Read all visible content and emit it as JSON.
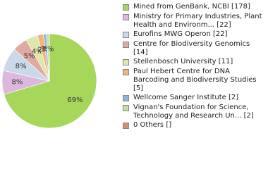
{
  "chart_data": {
    "type": "pie",
    "categories": [
      "Mined from GenBank, NCBI [178]",
      "Ministry for Primary Industries, Plant Health and Environm... [22]",
      "Eurofins MWG Operon [22]",
      "Centre for Biodiversity Genomics [14]",
      "Stellenbosch University [11]",
      "Paul Hebert Centre for DNA Barcoding and Biodiversity Studies [5]",
      "Wellcome Sanger Institute [2]",
      "Vignan's Foundation for Science, Technology and Research Un... [2]",
      "0 Others []"
    ],
    "values": [
      69,
      8,
      8,
      5,
      4,
      2,
      1,
      1,
      0
    ],
    "value_labels": [
      "69%",
      "8%",
      "8%",
      "5%",
      "4%",
      "2%",
      "1%",
      "1%",
      null
    ],
    "colors": [
      "#a6d75b",
      "#dcb9dc",
      "#cad8e8",
      "#e0aaa4",
      "#dde8a8",
      "#f0b47c",
      "#90b4dc",
      "#c4e096",
      "#d88c70"
    ]
  }
}
